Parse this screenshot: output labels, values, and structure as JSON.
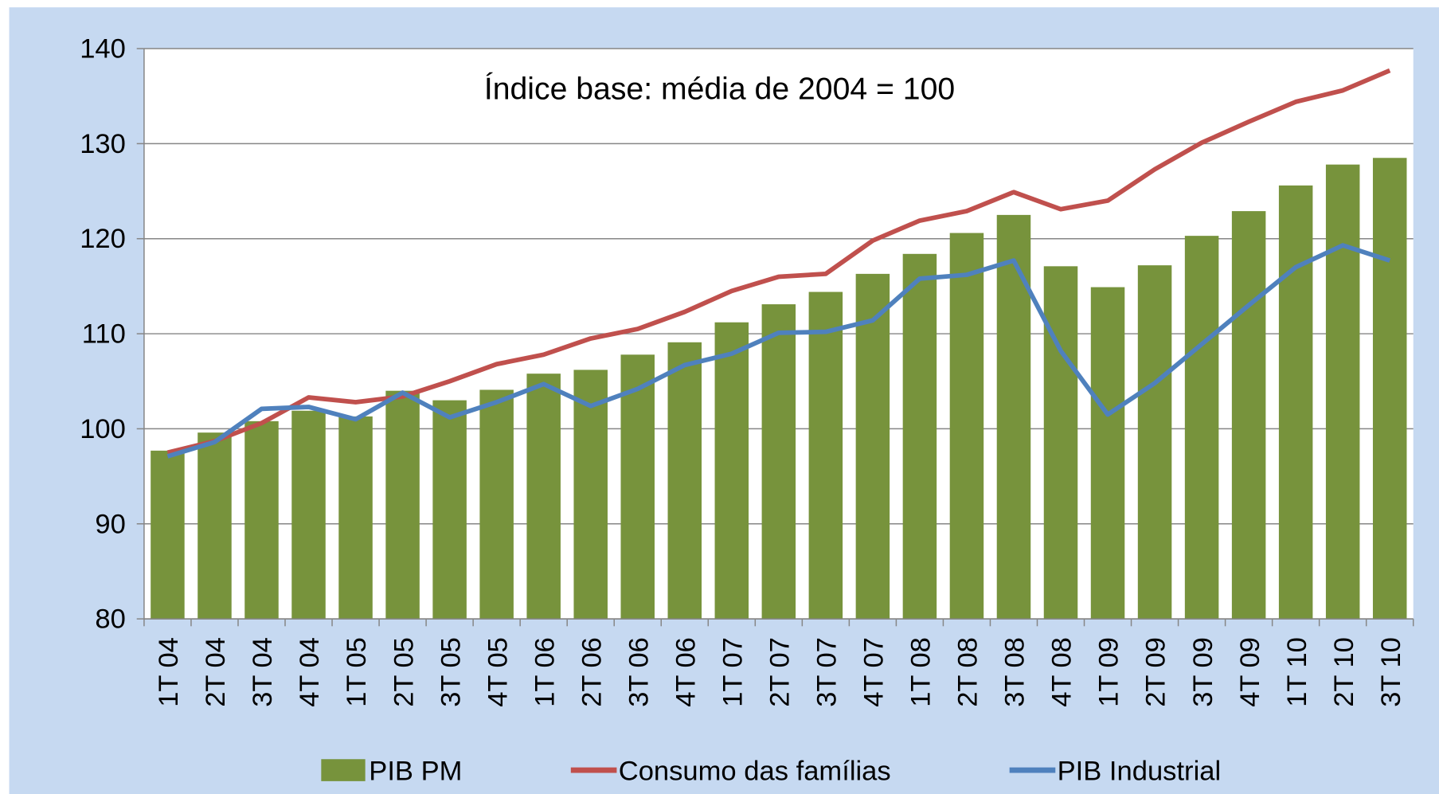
{
  "chart_data": {
    "type": "bar_line",
    "annotation": "Índice base: média de 2004 = 100",
    "categories": [
      "1T 04",
      "2T 04",
      "3T 04",
      "4T 04",
      "1T 05",
      "2T 05",
      "3T 05",
      "4T 05",
      "1T 06",
      "2T 06",
      "3T 06",
      "4T 06",
      "1T 07",
      "2T 07",
      "3T 07",
      "4T 07",
      "1T 08",
      "2T 08",
      "3T 08",
      "4T 08",
      "1T 09",
      "2T 09",
      "3T 09",
      "4T 09",
      "1T 10",
      "2T 10",
      "3T 10"
    ],
    "series": [
      {
        "name": "PIB PM",
        "type": "bar",
        "color": "#77933c",
        "values": [
          97.7,
          99.6,
          100.8,
          101.9,
          101.3,
          104.0,
          103.0,
          104.1,
          105.8,
          106.2,
          107.8,
          109.1,
          111.2,
          113.1,
          114.4,
          116.3,
          118.4,
          120.6,
          122.5,
          117.1,
          114.9,
          117.2,
          120.3,
          122.9,
          125.6,
          127.8,
          128.5
        ]
      },
      {
        "name": "Consumo das famílias",
        "type": "line",
        "color": "#c0504d",
        "values": [
          97.5,
          98.7,
          100.6,
          103.3,
          102.8,
          103.4,
          105.0,
          106.8,
          107.8,
          109.5,
          110.5,
          112.3,
          114.5,
          116.0,
          116.3,
          119.8,
          121.9,
          122.9,
          124.9,
          123.1,
          124.0,
          127.3,
          130.1,
          132.3,
          134.4,
          135.6,
          137.7
        ]
      },
      {
        "name": "PIB Industrial",
        "type": "line",
        "color": "#4f81bd",
        "values": [
          97.1,
          98.6,
          102.1,
          102.3,
          101.0,
          103.8,
          101.2,
          102.8,
          104.7,
          102.4,
          104.2,
          106.7,
          107.9,
          110.1,
          110.2,
          111.4,
          115.8,
          116.2,
          117.7,
          108.2,
          101.5,
          104.8,
          108.9,
          113.0,
          117.0,
          119.3,
          117.7
        ]
      }
    ],
    "ylim": [
      80,
      140
    ],
    "yticks": [
      80,
      90,
      100,
      110,
      120,
      130,
      140
    ],
    "grid": true
  }
}
